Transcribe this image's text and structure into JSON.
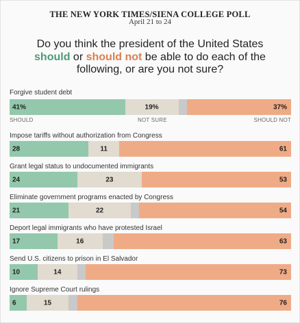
{
  "header": {
    "source": "THE NEW YORK TIMES/SIENA COLLEGE POLL",
    "dates": "April 21 to 24"
  },
  "question": {
    "pre": "Do you think the president of the United States ",
    "should": "should",
    "mid": " or ",
    "should_not": "should not",
    "post": " be able to do each of the following, or are you not sure?"
  },
  "legend": {
    "should": "SHOULD",
    "not_sure": "NOT SURE",
    "should_not": "SHOULD NOT"
  },
  "colors": {
    "should": "#93c8ad",
    "not_sure": "#e1dbd0",
    "gap": "#c9c9c9",
    "should_not": "#efab86"
  },
  "chart_data": {
    "type": "bar",
    "stacked": true,
    "orientation": "horizontal",
    "categories": [
      "Forgive student debt",
      "Impose tariffs without authorization from Congress",
      "Grant legal status to undocumented immigrants",
      "Eliminate government programs enacted by Congress",
      "Deport legal immigrants who have protested Israel",
      "Send U.S. citizens to prison in El Salvador",
      "Ignore Supreme Court rulings"
    ],
    "series": [
      {
        "name": "SHOULD",
        "values": [
          41,
          28,
          24,
          21,
          17,
          10,
          6
        ]
      },
      {
        "name": "NOT SURE",
        "values": [
          19,
          11,
          23,
          22,
          16,
          14,
          15
        ]
      },
      {
        "name": "SHOULD NOT",
        "values": [
          37,
          61,
          53,
          54,
          63,
          73,
          76
        ]
      }
    ],
    "value_labels": [
      [
        "41%",
        "19%",
        "37%"
      ],
      [
        "28",
        "11",
        "61"
      ],
      [
        "24",
        "23",
        "53"
      ],
      [
        "21",
        "22",
        "54"
      ],
      [
        "17",
        "16",
        "63"
      ],
      [
        "10",
        "14",
        "73"
      ],
      [
        "6",
        "15",
        "76"
      ]
    ]
  }
}
